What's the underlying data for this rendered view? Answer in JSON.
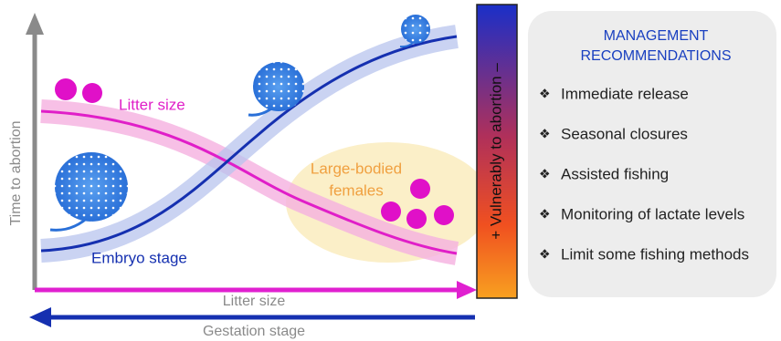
{
  "diagram": {
    "y_axis_label": "Time to abortion",
    "curve_labels": {
      "litter": "Litter size",
      "embryo": "Embryo stage"
    },
    "highlight_label": [
      "Large-bodied",
      "females"
    ],
    "x_axis_labels": {
      "litter": "Litter size",
      "gestation": "Gestation stage"
    },
    "gradient_label": "+ Vulnerably to abortion –"
  },
  "panel": {
    "title": [
      "MANAGEMENT",
      "RECOMMENDATIONS"
    ],
    "bullet": "❖",
    "items": [
      "Immediate release",
      "Seasonal closures",
      "Assisted fishing",
      "Monitoring of lactate levels",
      "Limit some fishing methods"
    ]
  }
}
